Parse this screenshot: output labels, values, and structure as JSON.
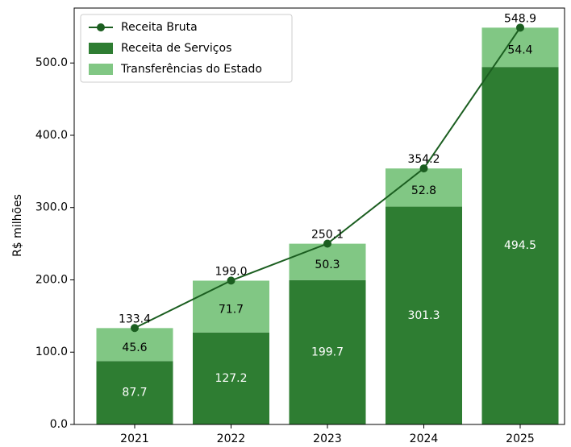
{
  "chart_data": {
    "type": "stacked_bar_line",
    "ylabel": "R$ milhões",
    "categories": [
      "2021",
      "2022",
      "2023",
      "2024",
      "2025"
    ],
    "series": [
      {
        "name": "Receita de Serviços",
        "color": "#2e7d32",
        "values": [
          87.7,
          127.2,
          199.7,
          301.3,
          494.5
        ]
      },
      {
        "name": "Transferências do Estado",
        "color": "#81c784",
        "values": [
          45.6,
          71.7,
          50.3,
          52.8,
          54.4
        ]
      }
    ],
    "line": {
      "name": "Receita Bruta",
      "color": "#1b5e20",
      "values": [
        133.4,
        199.0,
        250.1,
        354.2,
        548.9
      ],
      "value_labels": [
        "133.4",
        "199.0",
        "250.1",
        "354.2",
        "548.9"
      ]
    },
    "ylim": [
      0,
      576
    ],
    "yticks": [
      {
        "value": 0,
        "label": "0.0"
      },
      {
        "value": 100,
        "label": "100.0"
      },
      {
        "value": 200,
        "label": "200.0"
      },
      {
        "value": 300,
        "label": "300.0"
      },
      {
        "value": 400,
        "label": "400.0"
      },
      {
        "value": 500,
        "label": "500.0"
      }
    ],
    "legend": "upper left"
  }
}
